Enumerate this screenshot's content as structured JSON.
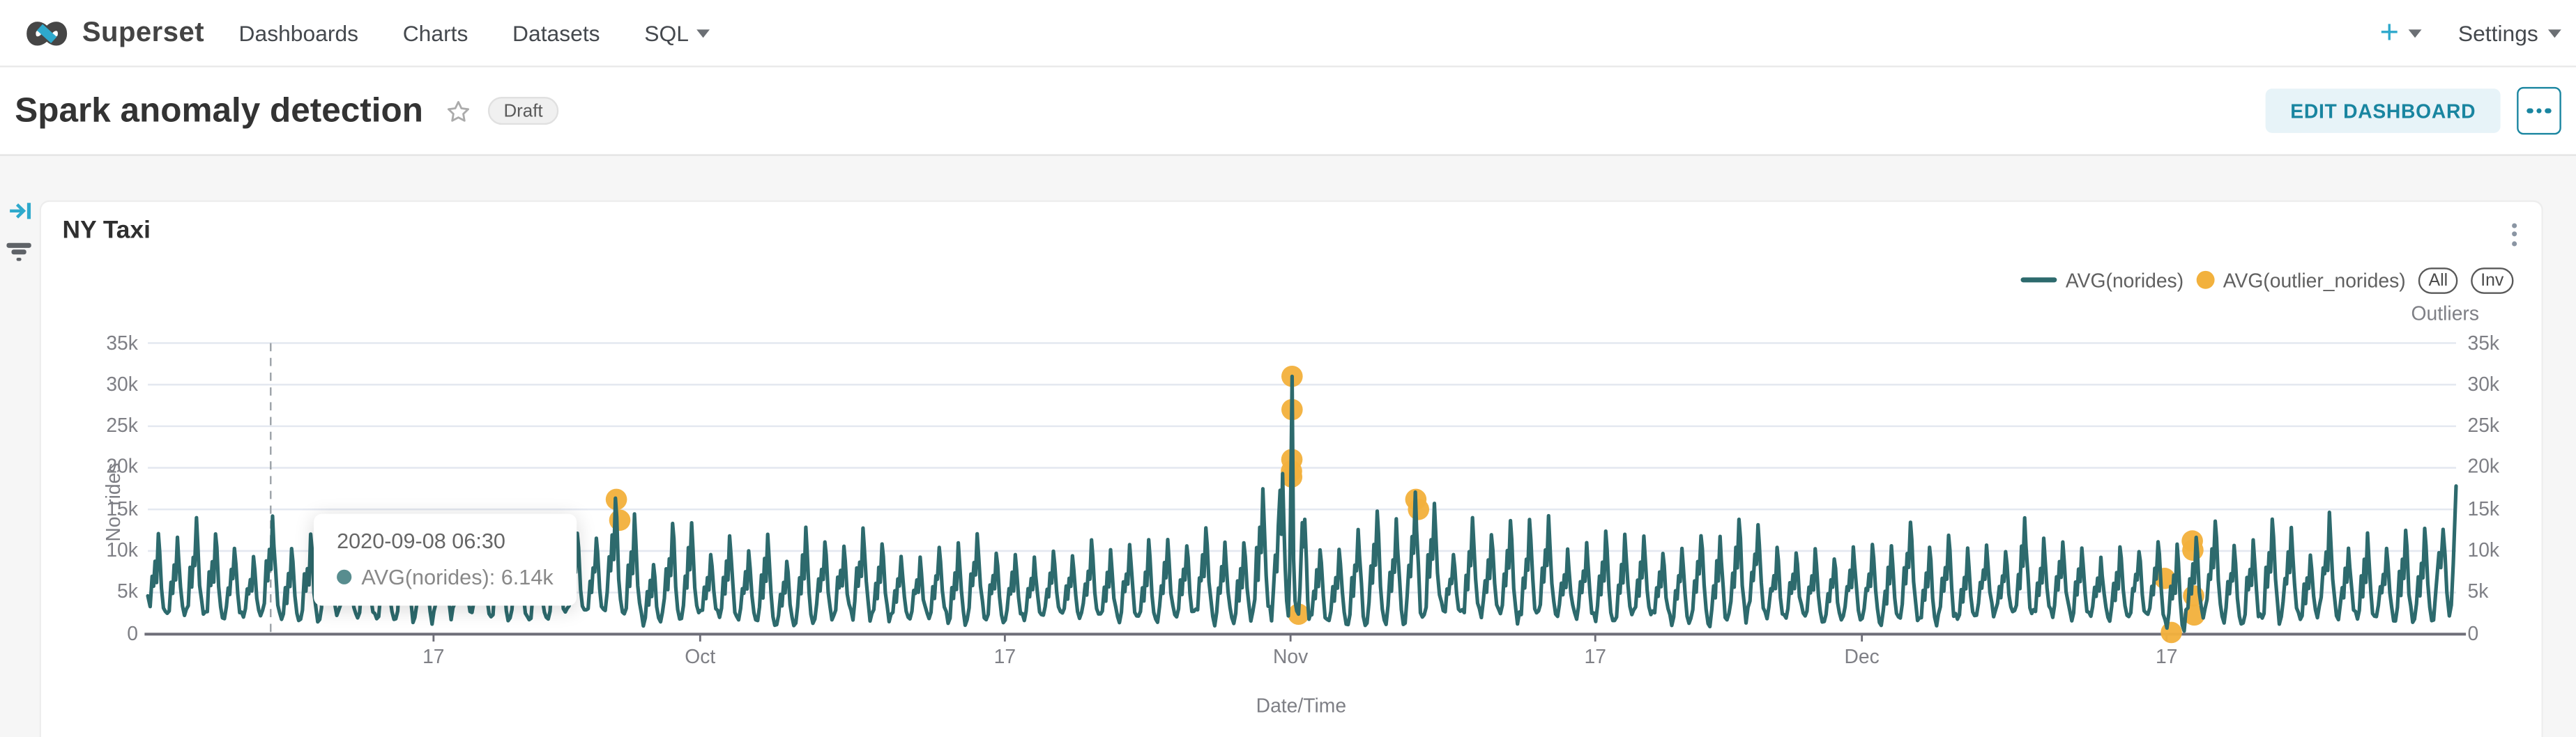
{
  "nav": {
    "brand": "Superset",
    "items": [
      {
        "label": "Dashboards",
        "caret": false
      },
      {
        "label": "Charts",
        "caret": false
      },
      {
        "label": "Datasets",
        "caret": false
      },
      {
        "label": "SQL",
        "caret": true
      }
    ],
    "plus_label": "+",
    "settings_label": "Settings"
  },
  "header": {
    "title": "Spark anomaly detection",
    "status_badge": "Draft",
    "edit_button": "EDIT DASHBOARD"
  },
  "chart": {
    "title": "NY Taxi",
    "legend": [
      {
        "label": "AVG(norides)",
        "swatch": "line",
        "color": "#2D6A6D"
      },
      {
        "label": "AVG(outlier_norides)",
        "swatch": "dot",
        "color": "#F2B13D"
      }
    ],
    "legend_buttons": [
      "All",
      "Inv"
    ],
    "outliers_axis_label": "Outliers",
    "tooltip": {
      "date": "2020-09-08 06:30",
      "entry": "AVG(norides): 6.14k"
    },
    "chart_data": {
      "type": "line",
      "title": "NY Taxi",
      "xlabel": "Date/Time",
      "ylabel": "No. rides",
      "ylabel_right": "Outliers",
      "ylim_k": [
        0,
        35
      ],
      "y_tick_labels": [
        "35k",
        "30k",
        "25k",
        "20k",
        "15k",
        "10k",
        "5k",
        "0"
      ],
      "x_ticks": [
        {
          "label": "17",
          "day": 15
        },
        {
          "label": "Oct",
          "day": 29
        },
        {
          "label": "17",
          "day": 45
        },
        {
          "label": "Nov",
          "day": 60
        },
        {
          "label": "17",
          "day": 76
        },
        {
          "label": "Dec",
          "day": 90
        },
        {
          "label": "17",
          "day": 106
        }
      ],
      "days_span": 121.2,
      "hover_day": 6.45,
      "series": [
        {
          "name": "AVG(norides)",
          "type": "line",
          "color": "#2D6A6D"
        },
        {
          "name": "AVG(outlier_norides)",
          "type": "scatter",
          "color": "#F2B13D"
        }
      ],
      "seed": 11,
      "daily_pattern": {
        "fracs": [
          0.02,
          0.12,
          0.22,
          0.3,
          0.38,
          0.46,
          0.55,
          0.62,
          0.72,
          0.82,
          0.92
        ],
        "mults": [
          0.05,
          0.15,
          0.5,
          0.35,
          0.68,
          0.5,
          1.0,
          0.78,
          0.38,
          0.15,
          0.06
        ]
      },
      "peak_range_k": [
        9.5,
        14.5
      ],
      "trough_range_k": [
        0.9,
        2.2
      ],
      "peak_overrides_k": {
        "24": 16.5,
        "25": 14.2,
        "58": 17.2,
        "66": 16.8,
        "67": 15.6,
        "105": 11.2,
        "106": 11,
        "107": 11.4,
        "119": 12.5
      },
      "trough_overrides_k": {
        "61": 1.2,
        "106": 0.15
      },
      "head_point_k": [
        0,
        4.6
      ],
      "custom_segment_days": [
        59,
        61
      ],
      "custom_points_k": [
        [
          59.0,
          1.6
        ],
        [
          59.1,
          5.2
        ],
        [
          59.2,
          9.5
        ],
        [
          59.28,
          7.5
        ],
        [
          59.36,
          13
        ],
        [
          59.45,
          17.3
        ],
        [
          59.52,
          12
        ],
        [
          59.58,
          19.3
        ],
        [
          59.64,
          14
        ],
        [
          59.72,
          8
        ],
        [
          59.8,
          4
        ],
        [
          59.88,
          2.2
        ],
        [
          59.95,
          7.5
        ],
        [
          60.0,
          14
        ],
        [
          60.08,
          31
        ],
        [
          60.16,
          9
        ],
        [
          60.24,
          4
        ],
        [
          60.32,
          2.8
        ],
        [
          60.42,
          2.4
        ],
        [
          60.5,
          5.5
        ],
        [
          60.56,
          9.5
        ],
        [
          60.62,
          13.4
        ],
        [
          60.68,
          10.5
        ],
        [
          60.75,
          13.8
        ],
        [
          60.83,
          9
        ],
        [
          60.9,
          4
        ],
        [
          60.97,
          1.8
        ]
      ],
      "tail_points_k": [
        [
          120.02,
          1.7
        ],
        [
          120.15,
          5.5
        ],
        [
          120.3,
          9.8
        ],
        [
          120.4,
          8
        ],
        [
          120.52,
          12.6
        ],
        [
          120.62,
          9.5
        ],
        [
          120.72,
          5
        ],
        [
          120.85,
          2.2
        ],
        [
          120.95,
          3.5
        ],
        [
          121.05,
          8.5
        ],
        [
          121.2,
          17.8
        ]
      ],
      "outliers_k": [
        [
          24.6,
          16.2
        ],
        [
          24.78,
          13.7
        ],
        [
          60.08,
          31
        ],
        [
          60.08,
          27
        ],
        [
          60.07,
          21
        ],
        [
          60.05,
          19.6
        ],
        [
          60.06,
          18.9
        ],
        [
          60.42,
          2.4
        ],
        [
          66.58,
          16.2
        ],
        [
          66.72,
          15.0
        ],
        [
          105.9,
          6.7
        ],
        [
          106.25,
          0.2
        ],
        [
          107.35,
          11.2
        ],
        [
          107.38,
          10.1
        ],
        [
          107.42,
          4.6
        ],
        [
          107.45,
          2.3
        ]
      ]
    }
  },
  "colors": {
    "accent": "#2EA9CC",
    "primary_teal": "#1985A0",
    "line": "#2D6A6D",
    "outlier": "#F2B13D",
    "grid": "#E4E8F0",
    "axis": "#6E6E78",
    "tick_text": "#7E7F85",
    "hover_line": "#9AA0A6"
  }
}
